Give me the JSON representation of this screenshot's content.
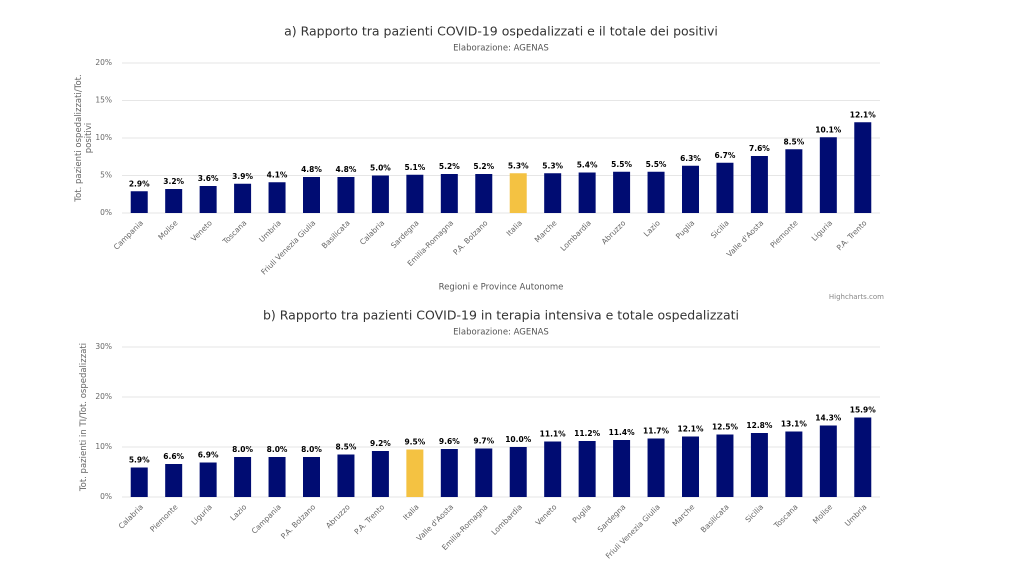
{
  "chart_data": [
    {
      "type": "bar",
      "title": "a) Rapporto tra pazienti COVID-19 ospedalizzati e il totale dei positivi",
      "subtitle": "Elaborazione: AGENAS",
      "y_axis_title": "Tot. pazienti ospedalizzati/Tot. positivi",
      "x_axis_title": "Regioni e Province Autonome",
      "credits": "Highcharts.com",
      "categories": [
        "Campania",
        "Molise",
        "Veneto",
        "Toscana",
        "Umbria",
        "Friuli Venezia Giulia",
        "Basilicata",
        "Calabria",
        "Sardegna",
        "Emilia-Romagna",
        "P.A. Bolzano",
        "Italia",
        "Marche",
        "Lombardia",
        "Abruzzo",
        "Lazio",
        "Puglia",
        "Sicilia",
        "Valle d'Aosta",
        "Piemonte",
        "Liguria",
        "P.A. Trento"
      ],
      "values": [
        2.9,
        3.2,
        3.6,
        3.9,
        4.1,
        4.8,
        4.8,
        5.0,
        5.1,
        5.2,
        5.2,
        5.3,
        5.3,
        5.4,
        5.5,
        5.5,
        6.3,
        6.7,
        7.6,
        8.5,
        10.1,
        12.1
      ],
      "value_labels": [
        "2.9%",
        "3.2%",
        "3.6%",
        "3.9%",
        "4.1%",
        "4.8%",
        "4.8%",
        "5.0%",
        "5.1%",
        "5.2%",
        "5.2%",
        "5.3%",
        "5.3%",
        "5.4%",
        "5.5%",
        "5.5%",
        "6.3%",
        "6.7%",
        "7.6%",
        "8.5%",
        "10.1%",
        "12.1%"
      ],
      "colors": [
        "#000c72",
        "#000c72",
        "#000c72",
        "#000c72",
        "#000c72",
        "#000c72",
        "#000c72",
        "#000c72",
        "#000c72",
        "#000c72",
        "#000c72",
        "#f4c242",
        "#000c72",
        "#000c72",
        "#000c72",
        "#000c72",
        "#000c72",
        "#000c72",
        "#000c72",
        "#000c72",
        "#000c72",
        "#000c72"
      ],
      "ylim": [
        0,
        20
      ],
      "yticks": [
        {
          "value": 0,
          "label": "0%"
        },
        {
          "value": 5,
          "label": "5%"
        },
        {
          "value": 10,
          "label": "10%"
        },
        {
          "value": 15,
          "label": "15%"
        },
        {
          "value": 20,
          "label": "20%"
        }
      ],
      "grid": true
    },
    {
      "type": "bar",
      "title": "b) Rapporto tra pazienti COVID-19 in terapia intensiva e totale ospedalizzati",
      "subtitle": "Elaborazione: AGENAS",
      "y_axis_title": "Tot. pazienti in TI/Tot. ospedalizzati",
      "categories": [
        "Calabria",
        "Piemonte",
        "Liguria",
        "Lazio",
        "Campania",
        "P.A. Bolzano",
        "Abruzzo",
        "P.A. Trento",
        "Italia",
        "Valle d'Aosta",
        "Emilia-Romagna",
        "Lombardia",
        "Veneto",
        "Puglia",
        "Sardegna",
        "Friuli Venezia Giulia",
        "Marche",
        "Basilicata",
        "Sicilia",
        "Toscana",
        "Molise",
        "Umbria"
      ],
      "values": [
        5.9,
        6.6,
        6.9,
        8.0,
        8.0,
        8.0,
        8.5,
        9.2,
        9.5,
        9.6,
        9.7,
        10.0,
        11.1,
        11.2,
        11.4,
        11.7,
        12.1,
        12.5,
        12.8,
        13.1,
        14.3,
        15.9
      ],
      "value_labels": [
        "5.9%",
        "6.6%",
        "6.9%",
        "8.0%",
        "8.0%",
        "8.0%",
        "8.5%",
        "9.2%",
        "9.5%",
        "9.6%",
        "9.7%",
        "10.0%",
        "11.1%",
        "11.2%",
        "11.4%",
        "11.7%",
        "12.1%",
        "12.5%",
        "12.8%",
        "13.1%",
        "14.3%",
        "15.9%"
      ],
      "colors": [
        "#000c72",
        "#000c72",
        "#000c72",
        "#000c72",
        "#000c72",
        "#000c72",
        "#000c72",
        "#000c72",
        "#f4c242",
        "#000c72",
        "#000c72",
        "#000c72",
        "#000c72",
        "#000c72",
        "#000c72",
        "#000c72",
        "#000c72",
        "#000c72",
        "#000c72",
        "#000c72",
        "#000c72",
        "#000c72"
      ],
      "ylim": [
        0,
        30
      ],
      "yticks": [
        {
          "value": 0,
          "label": "0%"
        },
        {
          "value": 10,
          "label": "10%"
        },
        {
          "value": 20,
          "label": "20%"
        },
        {
          "value": 30,
          "label": "30%"
        }
      ],
      "grid": true
    }
  ]
}
